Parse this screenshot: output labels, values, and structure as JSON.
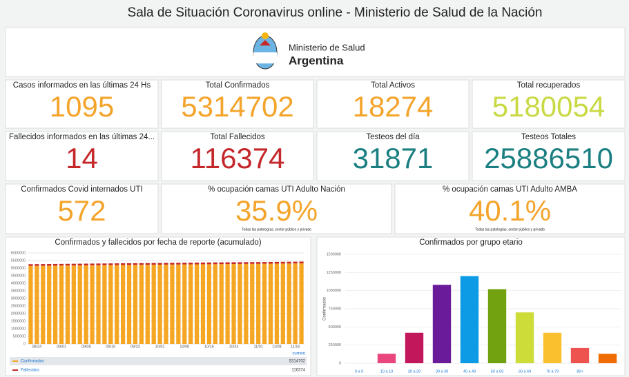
{
  "header": {
    "title": "Sala de Situación Coronavirus online - Ministerio de Salud de la Nación"
  },
  "logo": {
    "line1": "Ministerio de Salud",
    "line2": "Argentina"
  },
  "panels": [
    {
      "title": "Casos informados en las últimas 24 Hs",
      "value": "1095",
      "color": "#f4a42b"
    },
    {
      "title": "Total Confirmados",
      "value": "5314702",
      "color": "#f4a42b"
    },
    {
      "title": "Total Activos",
      "value": "18274",
      "color": "#f4a42b"
    },
    {
      "title": "Total recuperados",
      "value": "5180054",
      "color": "#c9d943"
    },
    {
      "title": "Fallecidos informados en las últimas 24...",
      "value": "14",
      "color": "#c4282b"
    },
    {
      "title": "Total Fallecidos",
      "value": "116374",
      "color": "#c4282b"
    },
    {
      "title": "Testeos del día",
      "value": "31871",
      "color": "#1b7f82"
    },
    {
      "title": "Testeos Totales",
      "value": "25886510",
      "color": "#1b7f82"
    },
    {
      "title": "Confirmados Covid internados UTI",
      "value": "572",
      "color": "#f4a42b"
    },
    {
      "title": "% ocupación camas UTI Adulto Nación",
      "value": "35.9%",
      "note": "Todas las patologías, sector público y privado",
      "color": "#f4a42b"
    },
    {
      "title": "% ocupación camas UTI Adulto AMBA",
      "value": "40.1%",
      "note": "Todas las patologías, sector público y privado",
      "color": "#f4a42b"
    }
  ],
  "chart_data": [
    {
      "type": "stacked-bar",
      "title": "Confirmados y fallecidos por fecha de reporte (acumulado)",
      "categories": [
        null,
        "08/24",
        null,
        null,
        null,
        "09/01",
        null,
        null,
        null,
        "09/08",
        null,
        null,
        null,
        "09/16",
        null,
        null,
        null,
        "09/23",
        null,
        null,
        null,
        "10/01",
        null,
        null,
        null,
        "10/08",
        null,
        null,
        null,
        "10/16",
        null,
        null,
        null,
        "10/24",
        null,
        null,
        null,
        "11/01",
        null,
        null,
        "11/08",
        null,
        null,
        "11/16",
        null
      ],
      "series": [
        {
          "name": "Confirmados",
          "color": "#f5a623",
          "current": 5314702,
          "values": [
            5150000,
            5154000,
            5157000,
            5161000,
            5165000,
            5168000,
            5172000,
            5176000,
            5180000,
            5183000,
            5187000,
            5191000,
            5194000,
            5198000,
            5202000,
            5206000,
            5209000,
            5213000,
            5217000,
            5220000,
            5224000,
            5228000,
            5231000,
            5235000,
            5239000,
            5243000,
            5246000,
            5250000,
            5254000,
            5257000,
            5261000,
            5265000,
            5268000,
            5272000,
            5276000,
            5280000,
            5283000,
            5287000,
            5291000,
            5294000,
            5298000,
            5302000,
            5305000,
            5309000,
            5314702
          ]
        },
        {
          "name": "Fallecidos",
          "color": "#c62828",
          "current": 116374,
          "values": [
            110000,
            110100,
            110300,
            110400,
            110600,
            110700,
            110900,
            111000,
            111200,
            111300,
            111500,
            111600,
            111700,
            111900,
            112000,
            112200,
            112300,
            112500,
            112600,
            112800,
            112900,
            113100,
            113200,
            113300,
            113500,
            113600,
            113800,
            113900,
            114100,
            114200,
            114400,
            114500,
            114600,
            114800,
            114900,
            115100,
            115200,
            115400,
            115500,
            115700,
            115800,
            116000,
            116100,
            116200,
            116374
          ]
        }
      ],
      "legend_title": "current",
      "ylim": [
        0,
        6000000
      ],
      "yticks": [
        0,
        500000,
        1000000,
        1500000,
        2000000,
        2500000,
        3000000,
        3500000,
        4000000,
        4500000,
        5000000,
        5500000,
        6000000
      ],
      "grid": true
    },
    {
      "type": "bar",
      "title": "Confirmados por grupo etario",
      "ylabel": "Confirmados",
      "categories": [
        "0 a 9",
        "10 a 19",
        "20 a 29",
        "30 a 39",
        "40 a 49",
        "50 a 59",
        "60 a 69",
        "70 a 79",
        "80+",
        null
      ],
      "values": [
        0,
        130000,
        420000,
        1080000,
        1200000,
        1020000,
        700000,
        420000,
        210000,
        130000
      ],
      "colors": [
        "#e8467c",
        "#e8467c",
        "#c2185b",
        "#6a1b9a",
        "#0d9be6",
        "#72a20f",
        "#cddc39",
        "#fbc02d",
        "#ef5350",
        "#ef6c00"
      ],
      "ylim": [
        0,
        1500000
      ],
      "yticks": [
        0,
        250000,
        500000,
        750000,
        1000000,
        1250000,
        1500000
      ],
      "grid": true
    }
  ]
}
